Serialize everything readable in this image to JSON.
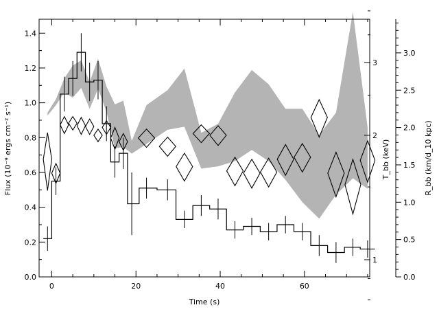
{
  "chart_data": {
    "type": "line",
    "title": "",
    "xlabel": "Time (s)",
    "xlim": [
      -3,
      75.5
    ],
    "x_ticks": [
      0,
      20,
      40,
      60
    ],
    "y_left": {
      "label": "Flux (10⁻⁹ ergs cm⁻² s⁻¹)",
      "ylim": [
        0,
        1.48
      ],
      "ticks": [
        "0.0",
        "0.2",
        "0.4",
        "0.6",
        "0.8",
        "1.0",
        "1.2",
        "1.4"
      ]
    },
    "y_kT": {
      "label": "T_bb (keV)",
      "scale": "log",
      "ticks": [
        "1",
        "2",
        "3"
      ]
    },
    "y_radius": {
      "label": "R_bb (km/d_10 kpc)",
      "ylim": [
        0,
        3.45
      ],
      "ticks": [
        "0.0",
        "0.5",
        "1.0",
        "1.5",
        "2.0",
        "2.5",
        "3.0"
      ]
    },
    "series": [
      {
        "style": "histogram with error bars",
        "x": [
          -1,
          1,
          3,
          5,
          7,
          9,
          11,
          13,
          15,
          17,
          19,
          22.5,
          27.5,
          31.5,
          35.5,
          39.5,
          43.5,
          47.5,
          51.5,
          55.5,
          59.5,
          63.5,
          67.5,
          71.5,
          75
        ],
        "y": [
          0.22,
          0.55,
          1.05,
          1.14,
          1.29,
          1.12,
          1.13,
          0.88,
          0.66,
          0.71,
          0.42,
          0.51,
          0.5,
          0.33,
          0.41,
          0.39,
          0.27,
          0.29,
          0.26,
          0.3,
          0.26,
          0.18,
          0.14,
          0.17,
          0.16
        ],
        "err": [
          0.07,
          0.08,
          0.1,
          0.1,
          0.11,
          0.11,
          0.11,
          0.1,
          0.09,
          0.09,
          0.18,
          0.06,
          0.06,
          0.05,
          0.06,
          0.06,
          0.05,
          0.05,
          0.05,
          0.05,
          0.05,
          0.06,
          0.06,
          0.05,
          0.05
        ]
      },
      {
        "style": "shaded band (R_bb)",
        "x": [
          -1,
          1,
          3,
          5,
          7,
          9,
          11,
          13,
          15,
          17,
          19,
          22.5,
          27.5,
          31.5,
          35.5,
          39.5,
          43.5,
          47.5,
          51.5,
          55.5,
          59.5,
          63.5,
          67.5,
          71.5,
          75
        ],
        "low": [
          2.16,
          2.3,
          2.47,
          2.4,
          2.53,
          2.25,
          2.52,
          2.21,
          1.72,
          1.74,
          1.65,
          1.78,
          1.97,
          2.01,
          1.45,
          1.48,
          1.55,
          1.7,
          1.55,
          1.3,
          1.0,
          0.78,
          1.1,
          1.32,
          1.18
        ],
        "high": [
          2.2,
          2.38,
          2.66,
          2.83,
          2.9,
          2.61,
          2.92,
          2.55,
          2.31,
          2.36,
          1.82,
          2.3,
          2.5,
          2.79,
          1.93,
          2.05,
          2.47,
          2.77,
          2.58,
          2.25,
          2.25,
          1.9,
          2.2,
          3.55,
          2.0
        ]
      },
      {
        "style": "diamonds (T_bb, keV)",
        "x": [
          -1,
          1,
          3,
          5,
          7,
          9,
          11,
          13,
          15,
          17,
          22.5,
          27.5,
          31.5,
          35.5,
          39.5,
          43.5,
          47.5,
          51.5,
          55.5,
          59.5,
          63.5,
          67.5,
          71.5,
          75
        ],
        "y": [
          1.75,
          1.62,
          2.12,
          2.14,
          2.11,
          2.1,
          2.0,
          2.09,
          1.97,
          1.93,
          1.97,
          1.88,
          1.68,
          2.02,
          2.0,
          1.64,
          1.62,
          1.63,
          1.75,
          1.77,
          2.21,
          1.62,
          1.52,
          1.74
        ],
        "dy": [
          0.28,
          0.09,
          0.1,
          0.08,
          0.1,
          0.09,
          0.07,
          0.08,
          0.12,
          0.09,
          0.1,
          0.1,
          0.13,
          0.1,
          0.11,
          0.13,
          0.13,
          0.13,
          0.15,
          0.14,
          0.23,
          0.2,
          0.23,
          0.2
        ]
      }
    ]
  }
}
